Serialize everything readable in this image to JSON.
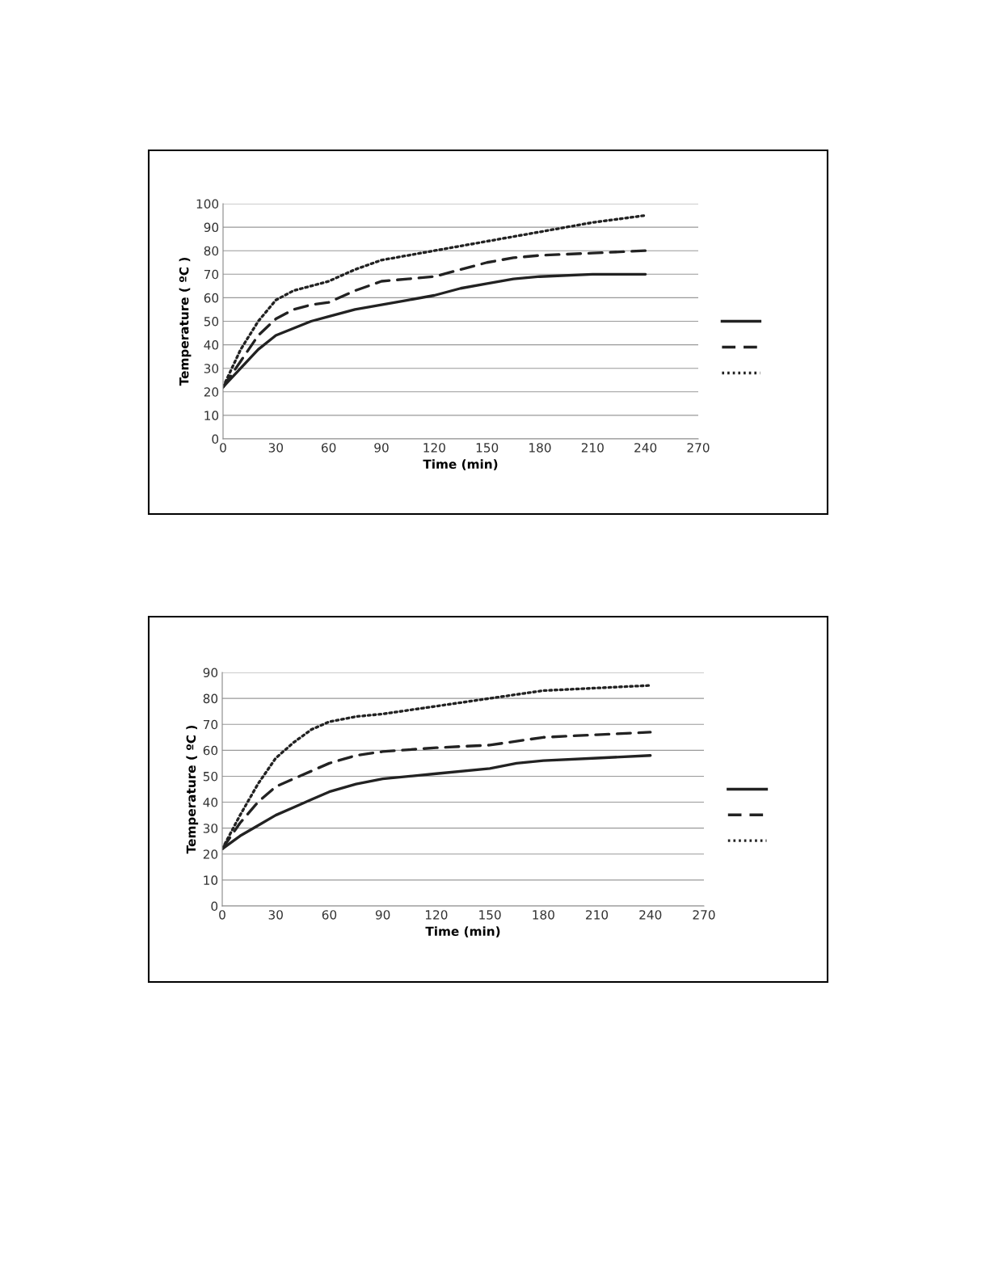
{
  "chart_data": [
    {
      "type": "line",
      "xlabel": "Time (min)",
      "ylabel": "Temperature ( ºC )",
      "xlim": [
        0,
        270
      ],
      "xticks": [
        0,
        30,
        60,
        90,
        120,
        150,
        180,
        210,
        240,
        270
      ],
      "ylim": [
        0,
        100
      ],
      "yticks": [
        0,
        10,
        20,
        30,
        40,
        50,
        60,
        70,
        80,
        90,
        100
      ],
      "grid": "y",
      "series": [
        {
          "color": "#222222",
          "line_style": "solid",
          "x": [
            0,
            10,
            20,
            30,
            40,
            50,
            60,
            75,
            90,
            105,
            120,
            135,
            150,
            165,
            180,
            210,
            240
          ],
          "values": [
            22,
            30,
            38,
            44,
            47,
            50,
            52,
            55,
            57,
            59,
            61,
            64,
            66,
            68,
            69,
            70,
            70
          ]
        },
        {
          "color": "#222222",
          "line_style": "dashed",
          "x": [
            0,
            10,
            20,
            30,
            40,
            50,
            60,
            75,
            90,
            105,
            120,
            135,
            150,
            165,
            180,
            210,
            240
          ],
          "values": [
            22,
            33,
            44,
            51,
            55,
            57,
            58,
            63,
            67,
            68,
            69,
            72,
            75,
            77,
            78,
            79,
            80
          ]
        },
        {
          "color": "#222222",
          "line_style": "dotted",
          "x": [
            0,
            10,
            20,
            30,
            40,
            50,
            60,
            75,
            90,
            105,
            120,
            150,
            180,
            210,
            240
          ],
          "values": [
            22,
            38,
            50,
            59,
            63,
            65,
            67,
            72,
            76,
            78,
            80,
            84,
            88,
            92,
            95
          ]
        }
      ]
    },
    {
      "type": "line",
      "xlabel": "Time (min)",
      "ylabel": "Temperature ( ºC )",
      "xlim": [
        0,
        270
      ],
      "xticks": [
        0,
        30,
        60,
        90,
        120,
        150,
        180,
        210,
        240,
        270
      ],
      "ylim": [
        0,
        90
      ],
      "yticks": [
        0,
        10,
        20,
        30,
        40,
        50,
        60,
        70,
        80,
        90
      ],
      "grid": "y",
      "series": [
        {
          "color": "#222222",
          "line_style": "solid",
          "x": [
            0,
            10,
            20,
            30,
            40,
            50,
            60,
            75,
            90,
            120,
            150,
            165,
            180,
            210,
            240
          ],
          "values": [
            22,
            27,
            31,
            35,
            38,
            41,
            44,
            47,
            49,
            51,
            53,
            55,
            56,
            57,
            58
          ]
        },
        {
          "color": "#222222",
          "line_style": "dashed",
          "x": [
            0,
            10,
            20,
            30,
            40,
            50,
            60,
            75,
            90,
            120,
            150,
            180,
            210,
            240
          ],
          "values": [
            22,
            32,
            40,
            46,
            49,
            52,
            55,
            58,
            59.5,
            61,
            62,
            65,
            66,
            67
          ]
        },
        {
          "color": "#222222",
          "line_style": "dotted",
          "x": [
            0,
            10,
            20,
            30,
            40,
            50,
            60,
            75,
            90,
            120,
            150,
            180,
            210,
            240
          ],
          "values": [
            22,
            35,
            47,
            57,
            63,
            68,
            71,
            73,
            74,
            77,
            80,
            83,
            84,
            85
          ]
        }
      ]
    }
  ]
}
